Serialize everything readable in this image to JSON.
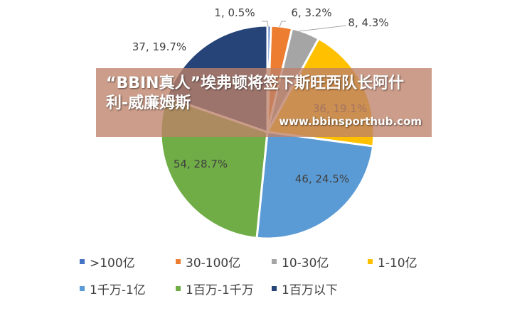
{
  "chart_data": {
    "type": "pie",
    "title": "",
    "slices": [
      {
        "category": ">100亿",
        "count": 1,
        "percent": 0.5,
        "label": "1, 0.5%",
        "color": "#4472C4"
      },
      {
        "category": "30-100亿",
        "count": 6,
        "percent": 3.2,
        "label": "6, 3.2%",
        "color": "#ED7D31"
      },
      {
        "category": "10-30亿",
        "count": 8,
        "percent": 4.3,
        "label": "8, 4.3%",
        "color": "#A5A5A5"
      },
      {
        "category": "1-10亿",
        "count": 36,
        "percent": 19.1,
        "label": "36, 19.1%",
        "color": "#FFC000"
      },
      {
        "category": "1千万-1亿",
        "count": 46,
        "percent": 24.5,
        "label": "46, 24.5%",
        "color": "#5B9BD5"
      },
      {
        "category": "1百万-1千万",
        "count": 54,
        "percent": 28.7,
        "label": "54, 28.7%",
        "color": "#70AD47"
      },
      {
        "category": "1百万以下",
        "count": 37,
        "percent": 19.7,
        "label": "37, 19.7%",
        "color": "#264478"
      }
    ],
    "legend_position": "bottom"
  },
  "legend": {
    "row1": [
      ">100亿",
      "30-100亿",
      "10-30亿",
      "1-10亿"
    ],
    "row2": [
      "1千万-1亿",
      "1百万-1千万",
      "1百万以下"
    ]
  },
  "overlay": {
    "title": "“BBIN真人”埃弗顿将签下斯旺西队长阿什利-威廉姆斯",
    "url": "www.bbinsporthub.com"
  }
}
